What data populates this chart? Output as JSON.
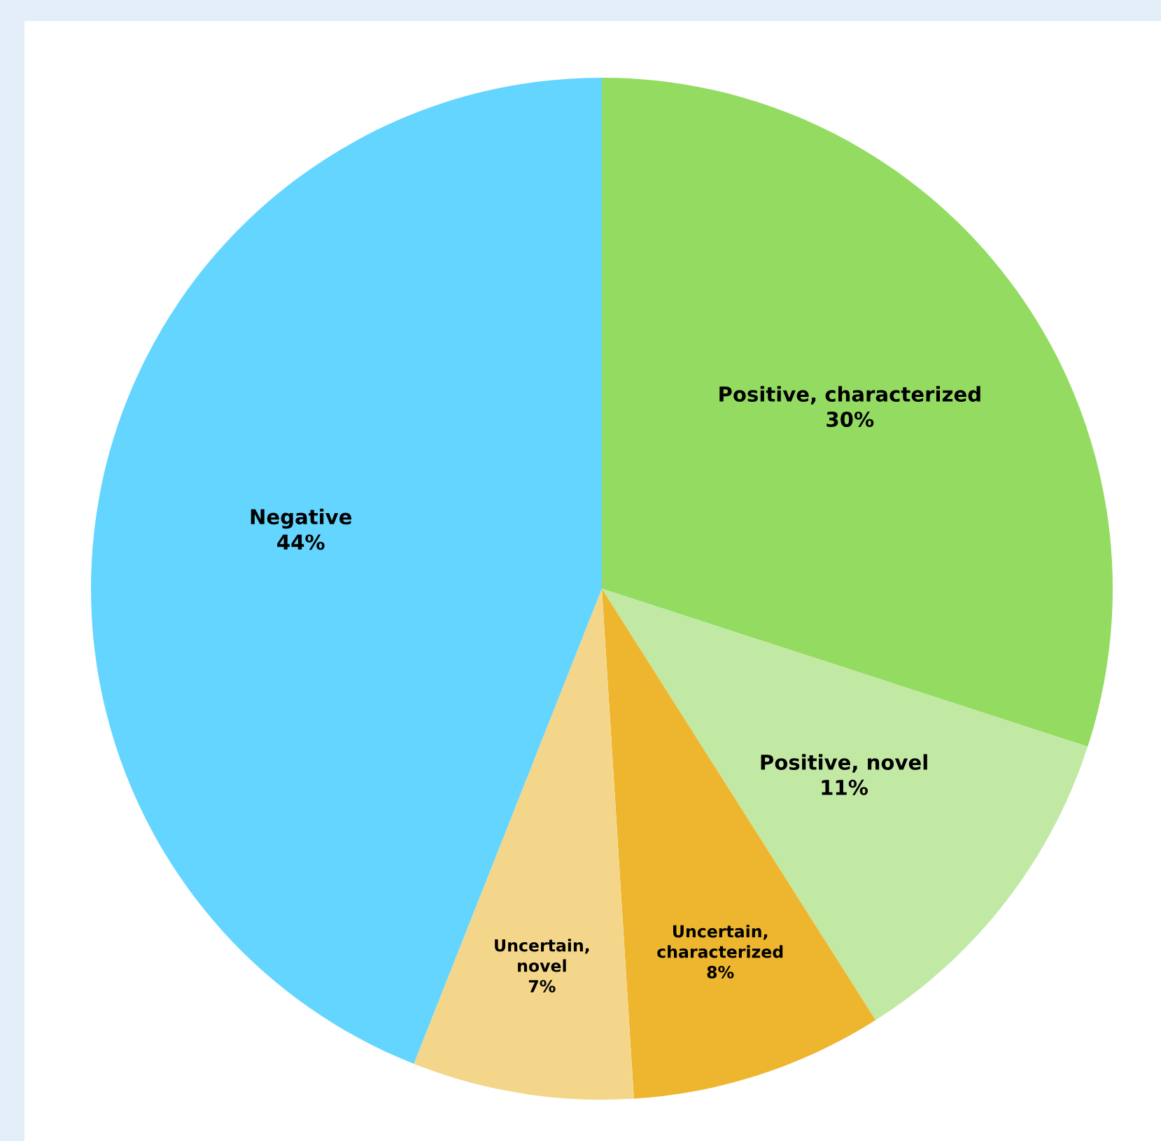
{
  "chart_data": {
    "type": "pie",
    "categories": [
      "Positive, characterized",
      "Positive, novel",
      "Uncertain, characterized",
      "Uncertain, novel",
      "Negative"
    ],
    "values": [
      30,
      11,
      8,
      7,
      44
    ],
    "colors": [
      "#93dc61",
      "#c2e9a3",
      "#eeb62e",
      "#f4d68b",
      "#63d5fe"
    ],
    "value_labels": [
      "30%",
      "11%",
      "8%",
      "7%",
      "44%"
    ],
    "legend": false
  }
}
